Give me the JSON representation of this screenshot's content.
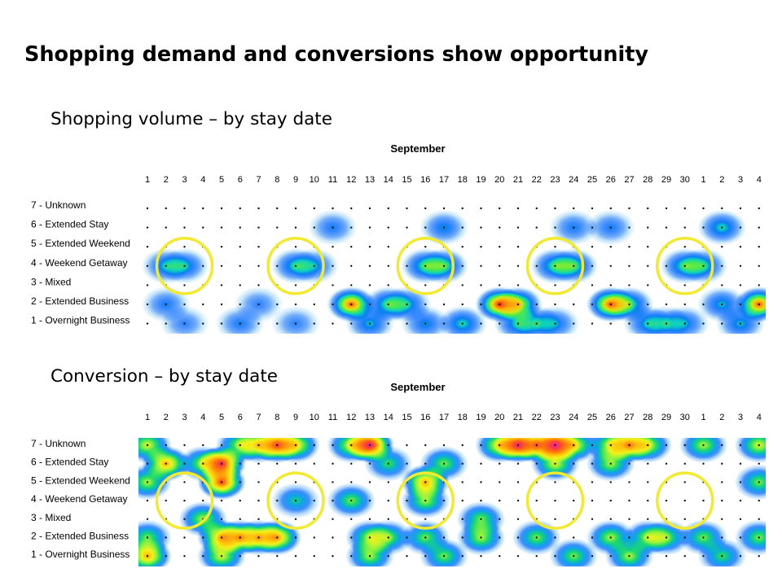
{
  "slide": {
    "title": "Shopping demand and conversions show opportunity",
    "subtitle_volume": "Shopping volume – by stay date",
    "subtitle_conversion": "Conversion – by stay date"
  },
  "chart_data": [
    {
      "type": "heatmap",
      "title": "Shopping volume – by stay date",
      "month_label": "September",
      "x_tick_labels": [
        "1",
        "2",
        "3",
        "4",
        "5",
        "6",
        "7",
        "8",
        "9",
        "10",
        "11",
        "12",
        "13",
        "14",
        "15",
        "16",
        "17",
        "18",
        "19",
        "20",
        "21",
        "22",
        "23",
        "24",
        "25",
        "26",
        "27",
        "28",
        "29",
        "30",
        "1",
        "2",
        "3",
        "4"
      ],
      "y_labels": [
        "7 - Unknown",
        "6 - Extended Stay",
        "5 - Extended Weekend",
        "4 - Weekend Getaway",
        "3 - Mixed",
        "2 - Extended Business",
        "1 - Overnight Business"
      ],
      "scale": "relative intensity 0-1 (0 = white/low, 1 = red/high)",
      "blobs": [
        {
          "day_index": 1,
          "row_index": 3,
          "value": 0.5
        },
        {
          "day_index": 2,
          "row_index": 3,
          "value": 0.5
        },
        {
          "day_index": 1,
          "row_index": 5,
          "value": 0.4
        },
        {
          "day_index": 2,
          "row_index": 6,
          "value": 0.35
        },
        {
          "day_index": 5,
          "row_index": 6,
          "value": 0.4
        },
        {
          "day_index": 6,
          "row_index": 5,
          "value": 0.35
        },
        {
          "day_index": 8,
          "row_index": 3,
          "value": 0.55
        },
        {
          "day_index": 9,
          "row_index": 3,
          "value": 0.45
        },
        {
          "day_index": 8,
          "row_index": 6,
          "value": 0.35
        },
        {
          "day_index": 10,
          "row_index": 1,
          "value": 0.4
        },
        {
          "day_index": 11,
          "row_index": 5,
          "value": 0.95
        },
        {
          "day_index": 12,
          "row_index": 6,
          "value": 0.5
        },
        {
          "day_index": 13,
          "row_index": 5,
          "value": 0.6
        },
        {
          "day_index": 14,
          "row_index": 5,
          "value": 0.5
        },
        {
          "day_index": 15,
          "row_index": 3,
          "value": 0.6
        },
        {
          "day_index": 16,
          "row_index": 3,
          "value": 0.6
        },
        {
          "day_index": 15,
          "row_index": 6,
          "value": 0.45
        },
        {
          "day_index": 17,
          "row_index": 6,
          "value": 0.55
        },
        {
          "day_index": 16,
          "row_index": 1,
          "value": 0.45
        },
        {
          "day_index": 19,
          "row_index": 5,
          "value": 1.0
        },
        {
          "day_index": 20,
          "row_index": 5,
          "value": 0.8
        },
        {
          "day_index": 20,
          "row_index": 6,
          "value": 0.55
        },
        {
          "day_index": 21,
          "row_index": 6,
          "value": 0.45
        },
        {
          "day_index": 22,
          "row_index": 3,
          "value": 0.6
        },
        {
          "day_index": 23,
          "row_index": 3,
          "value": 0.6
        },
        {
          "day_index": 22,
          "row_index": 6,
          "value": 0.45
        },
        {
          "day_index": 23,
          "row_index": 1,
          "value": 0.4
        },
        {
          "day_index": 25,
          "row_index": 5,
          "value": 0.95
        },
        {
          "day_index": 26,
          "row_index": 5,
          "value": 0.6
        },
        {
          "day_index": 27,
          "row_index": 6,
          "value": 0.5
        },
        {
          "day_index": 25,
          "row_index": 1,
          "value": 0.4
        },
        {
          "day_index": 28,
          "row_index": 6,
          "value": 0.45
        },
        {
          "day_index": 29,
          "row_index": 3,
          "value": 0.6
        },
        {
          "day_index": 30,
          "row_index": 3,
          "value": 0.55
        },
        {
          "day_index": 29,
          "row_index": 6,
          "value": 0.45
        },
        {
          "day_index": 31,
          "row_index": 1,
          "value": 0.55
        },
        {
          "day_index": 31,
          "row_index": 5,
          "value": 0.5
        },
        {
          "day_index": 33,
          "row_index": 5,
          "value": 0.95
        },
        {
          "day_index": 32,
          "row_index": 6,
          "value": 0.5
        }
      ],
      "highlight_circles": [
        {
          "day_index": 2,
          "row_index": 3
        },
        {
          "day_index": 8,
          "row_index": 3
        },
        {
          "day_index": 15,
          "row_index": 3
        },
        {
          "day_index": 22,
          "row_index": 3
        },
        {
          "day_index": 29,
          "row_index": 3
        }
      ]
    },
    {
      "type": "heatmap",
      "title": "Conversion – by stay date",
      "month_label": "September",
      "x_tick_labels": [
        "1",
        "2",
        "3",
        "4",
        "5",
        "6",
        "7",
        "8",
        "9",
        "10",
        "11",
        "12",
        "13",
        "14",
        "15",
        "16",
        "17",
        "18",
        "19",
        "20",
        "21",
        "22",
        "23",
        "24",
        "25",
        "26",
        "27",
        "28",
        "29",
        "30",
        "1",
        "2",
        "3",
        "4"
      ],
      "y_labels": [
        "7 - Unknown",
        "6 - Extended Stay",
        "5 - Extended Weekend",
        "4 - Weekend Getaway",
        "3 - Mixed",
        "2 - Extended Business",
        "1 - Overnight Business"
      ],
      "scale": "relative intensity 0-1 (0 = white/low, 1 = magenta/highest)",
      "blobs": [
        {
          "day_index": 0,
          "row_index": 0,
          "value": 0.6
        },
        {
          "day_index": 1,
          "row_index": 1,
          "value": 0.75
        },
        {
          "day_index": 0,
          "row_index": 2,
          "value": 0.55
        },
        {
          "day_index": 0,
          "row_index": 5,
          "value": 0.5
        },
        {
          "day_index": 0,
          "row_index": 6,
          "value": 0.75
        },
        {
          "day_index": 3,
          "row_index": 1,
          "value": 0.55
        },
        {
          "day_index": 4,
          "row_index": 1,
          "value": 0.95
        },
        {
          "day_index": 4,
          "row_index": 2,
          "value": 0.9
        },
        {
          "day_index": 5,
          "row_index": 0,
          "value": 0.55
        },
        {
          "day_index": 6,
          "row_index": 0,
          "value": 0.6
        },
        {
          "day_index": 7,
          "row_index": 0,
          "value": 0.85
        },
        {
          "day_index": 8,
          "row_index": 0,
          "value": 0.65
        },
        {
          "day_index": 3,
          "row_index": 4,
          "value": 0.55
        },
        {
          "day_index": 4,
          "row_index": 5,
          "value": 0.75
        },
        {
          "day_index": 5,
          "row_index": 5,
          "value": 0.7
        },
        {
          "day_index": 6,
          "row_index": 5,
          "value": 0.65
        },
        {
          "day_index": 7,
          "row_index": 5,
          "value": 0.75
        },
        {
          "day_index": 4,
          "row_index": 6,
          "value": 0.6
        },
        {
          "day_index": 8,
          "row_index": 3,
          "value": 0.4
        },
        {
          "day_index": 11,
          "row_index": 0,
          "value": 0.6
        },
        {
          "day_index": 12,
          "row_index": 0,
          "value": 1.0
        },
        {
          "day_index": 13,
          "row_index": 1,
          "value": 0.45
        },
        {
          "day_index": 11,
          "row_index": 3,
          "value": 0.5
        },
        {
          "day_index": 12,
          "row_index": 5,
          "value": 0.55
        },
        {
          "day_index": 13,
          "row_index": 5,
          "value": 0.5
        },
        {
          "day_index": 12,
          "row_index": 6,
          "value": 0.55
        },
        {
          "day_index": 15,
          "row_index": 2,
          "value": 0.75
        },
        {
          "day_index": 15,
          "row_index": 3,
          "value": 0.55
        },
        {
          "day_index": 16,
          "row_index": 1,
          "value": 0.5
        },
        {
          "day_index": 15,
          "row_index": 5,
          "value": 0.5
        },
        {
          "day_index": 16,
          "row_index": 6,
          "value": 0.5
        },
        {
          "day_index": 18,
          "row_index": 4,
          "value": 0.5
        },
        {
          "day_index": 18,
          "row_index": 5,
          "value": 0.55
        },
        {
          "day_index": 19,
          "row_index": 0,
          "value": 0.65
        },
        {
          "day_index": 20,
          "row_index": 0,
          "value": 0.95
        },
        {
          "day_index": 21,
          "row_index": 0,
          "value": 0.75
        },
        {
          "day_index": 22,
          "row_index": 0,
          "value": 1.0
        },
        {
          "day_index": 23,
          "row_index": 0,
          "value": 0.65
        },
        {
          "day_index": 22,
          "row_index": 1,
          "value": 0.6
        },
        {
          "day_index": 21,
          "row_index": 5,
          "value": 0.5
        },
        {
          "day_index": 23,
          "row_index": 6,
          "value": 0.5
        },
        {
          "day_index": 25,
          "row_index": 0,
          "value": 0.6
        },
        {
          "day_index": 26,
          "row_index": 0,
          "value": 0.75
        },
        {
          "day_index": 27,
          "row_index": 0,
          "value": 0.6
        },
        {
          "day_index": 25,
          "row_index": 1,
          "value": 0.55
        },
        {
          "day_index": 25,
          "row_index": 5,
          "value": 0.55
        },
        {
          "day_index": 26,
          "row_index": 6,
          "value": 0.55
        },
        {
          "day_index": 27,
          "row_index": 5,
          "value": 0.55
        },
        {
          "day_index": 28,
          "row_index": 5,
          "value": 0.5
        },
        {
          "day_index": 30,
          "row_index": 0,
          "value": 0.55
        },
        {
          "day_index": 30,
          "row_index": 5,
          "value": 0.5
        },
        {
          "day_index": 31,
          "row_index": 6,
          "value": 0.45
        },
        {
          "day_index": 33,
          "row_index": 0,
          "value": 0.6
        },
        {
          "day_index": 33,
          "row_index": 2,
          "value": 0.5
        },
        {
          "day_index": 33,
          "row_index": 5,
          "value": 0.5
        }
      ],
      "highlight_circles": [
        {
          "day_index": 2,
          "row_index": 3
        },
        {
          "day_index": 8,
          "row_index": 3
        },
        {
          "day_index": 15,
          "row_index": 3
        },
        {
          "day_index": 22,
          "row_index": 3
        },
        {
          "day_index": 29,
          "row_index": 3
        }
      ]
    }
  ]
}
